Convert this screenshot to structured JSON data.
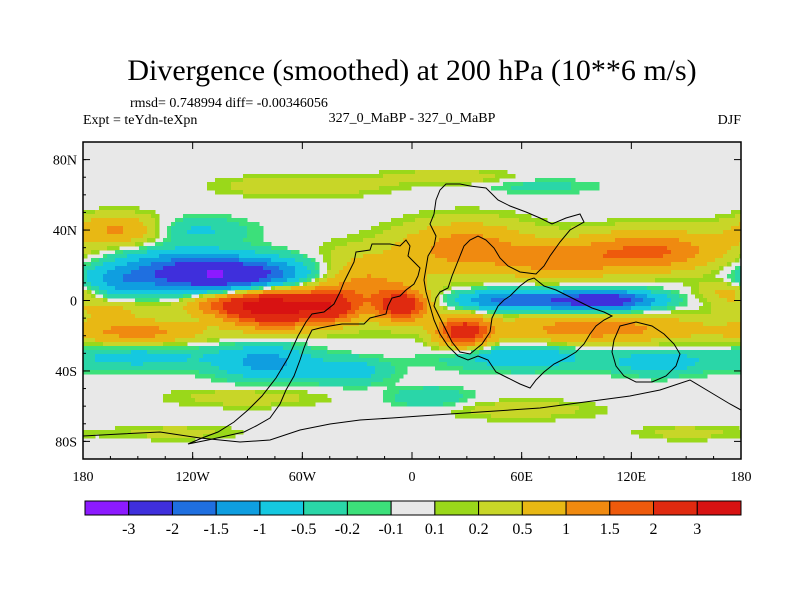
{
  "chart_data": {
    "type": "heatmap",
    "title": "Divergence (smoothed) at 200 hPa (10**6 m/s)",
    "stats_label": "rmsd= 0.748994 diff= -0.00346056",
    "experiment_label": "Expt = teYdn-teXpn",
    "comparison_label": "327_0_MaBP - 327_0_MaBP",
    "season_label": "DJF",
    "xlabel": "",
    "ylabel": "",
    "xlim": [
      -180,
      180
    ],
    "ylim": [
      -90,
      90
    ],
    "x_ticks": [
      {
        "value": -180,
        "label": "180"
      },
      {
        "value": -120,
        "label": "120W"
      },
      {
        "value": -60,
        "label": "60W"
      },
      {
        "value": 0,
        "label": "0"
      },
      {
        "value": 60,
        "label": "60E"
      },
      {
        "value": 120,
        "label": "120E"
      },
      {
        "value": 180,
        "label": "180"
      }
    ],
    "y_ticks": [
      {
        "value": 80,
        "label": "80N"
      },
      {
        "value": 40,
        "label": "40N"
      },
      {
        "value": 0,
        "label": "0"
      },
      {
        "value": -40,
        "label": "40S"
      },
      {
        "value": -80,
        "label": "80S"
      }
    ],
    "colorbar": {
      "levels": [
        "-3",
        "-2",
        "-1.5",
        "-1",
        "-0.5",
        "-0.2",
        "-0.1",
        "0.1",
        "0.2",
        "0.5",
        "1",
        "1.5",
        "2",
        "3"
      ],
      "colors": [
        "#8c1aff",
        "#3f2fdc",
        "#1f6fe0",
        "#0f9ee0",
        "#15c8e0",
        "#2ad6a8",
        "#3ce07a",
        "#e8e8e8",
        "#9ad81a",
        "#c8d628",
        "#e8b814",
        "#f08a10",
        "#ee5a0c",
        "#e02a10",
        "#d81212"
      ]
    },
    "features": [
      {
        "lon": -95,
        "lat": 14,
        "amp": -2.6,
        "sx": 30,
        "sy": 7
      },
      {
        "lon": -130,
        "lat": 18,
        "amp": -1.2,
        "sx": 25,
        "sy": 8
      },
      {
        "lon": -75,
        "lat": -4,
        "amp": 3.2,
        "sx": 18,
        "sy": 8
      },
      {
        "lon": -100,
        "lat": -2,
        "amp": 1.4,
        "sx": 18,
        "sy": 5
      },
      {
        "lon": -30,
        "lat": 8,
        "amp": 1.3,
        "sx": 22,
        "sy": 12
      },
      {
        "lon": -5,
        "lat": -3,
        "amp": 2.3,
        "sx": 10,
        "sy": 6
      },
      {
        "lon": -45,
        "lat": -4,
        "amp": 1.7,
        "sx": 10,
        "sy": 6
      },
      {
        "lon": 28,
        "lat": -18,
        "amp": 2.4,
        "sx": 10,
        "sy": 6
      },
      {
        "lon": 30,
        "lat": 30,
        "amp": 1.3,
        "sx": 25,
        "sy": 10
      },
      {
        "lon": 105,
        "lat": 0,
        "amp": -2.6,
        "sx": 20,
        "sy": 4
      },
      {
        "lon": 55,
        "lat": 0,
        "amp": -1.8,
        "sx": 22,
        "sy": 4
      },
      {
        "lon": 130,
        "lat": 28,
        "amp": 1.6,
        "sx": 28,
        "sy": 8
      },
      {
        "lon": 80,
        "lat": 22,
        "amp": 1.0,
        "sx": 22,
        "sy": 7
      },
      {
        "lon": 100,
        "lat": -16,
        "amp": 1.3,
        "sx": 40,
        "sy": 6
      },
      {
        "lon": -150,
        "lat": -18,
        "amp": 1.2,
        "sx": 25,
        "sy": 5
      },
      {
        "lon": -160,
        "lat": 40,
        "amp": 1.1,
        "sx": 18,
        "sy": 6
      },
      {
        "lon": -120,
        "lat": 40,
        "amp": -0.6,
        "sx": 20,
        "sy": 5
      },
      {
        "lon": -150,
        "lat": -32,
        "amp": -0.7,
        "sx": 30,
        "sy": 5
      },
      {
        "lon": -80,
        "lat": -35,
        "amp": -1.2,
        "sx": 18,
        "sy": 7
      },
      {
        "lon": -35,
        "lat": -40,
        "amp": -0.8,
        "sx": 15,
        "sy": 5
      },
      {
        "lon": 60,
        "lat": -32,
        "amp": -0.9,
        "sx": 28,
        "sy": 5
      },
      {
        "lon": 135,
        "lat": -35,
        "amp": -0.8,
        "sx": 18,
        "sy": 5
      },
      {
        "lon": -165,
        "lat": 10,
        "amp": -0.9,
        "sx": 15,
        "sy": 6
      },
      {
        "lon": -165,
        "lat": -5,
        "amp": 0.6,
        "sx": 15,
        "sy": 4
      },
      {
        "lon": 20,
        "lat": 70,
        "amp": 0.4,
        "sx": 25,
        "sy": 3
      },
      {
        "lon": -60,
        "lat": 65,
        "amp": 0.5,
        "sx": 30,
        "sy": 4
      },
      {
        "lon": 70,
        "lat": 65,
        "amp": -0.3,
        "sx": 22,
        "sy": 3
      },
      {
        "lon": -90,
        "lat": -55,
        "amp": 0.35,
        "sx": 30,
        "sy": 4
      },
      {
        "lon": 60,
        "lat": -62,
        "amp": 0.35,
        "sx": 30,
        "sy": 4
      },
      {
        "lon": -130,
        "lat": -75,
        "amp": 0.3,
        "sx": 25,
        "sy": 3
      },
      {
        "lon": 150,
        "lat": -75,
        "amp": 0.3,
        "sx": 20,
        "sy": 3
      },
      {
        "lon": 10,
        "lat": -55,
        "amp": -0.5,
        "sx": 15,
        "sy": 4
      },
      {
        "lon": 175,
        "lat": 5,
        "amp": 0.8,
        "sx": 12,
        "sy": 5
      }
    ]
  }
}
